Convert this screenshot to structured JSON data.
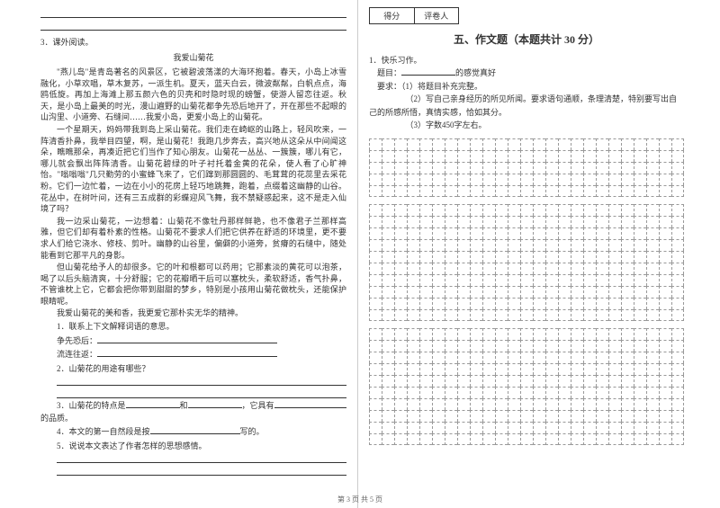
{
  "left": {
    "section_number": "3．课外阅读。",
    "passage_title": "我爱山菊花",
    "paragraphs": [
      "\"燕儿岛\"是青岛著名的风景区，它被碧波荡漾的大海环抱着。春天，小岛上冰雪融化，小草欢唱，草木复苏，一派生机。夏天，蓝天白云，微波粼粼，白帆点点，海鸥低旋。再加上海滩上那五颜六色的贝壳和时隐时现的螃蟹，使游人留恋往返。秋天，是小岛上最美的时光，漫山遍野的山菊花都争先恐后地开了，开在那些不起眼的山沟里、小道旁、石缝间……我爱小岛，更爱小岛上的山菊花。",
      "一个星期天，妈妈带我到岛上采山菊花。我们走在崎岖的山路上，轻风吹来，一阵清香扑鼻，我举目四望，啊，是山菊花！我跑几步奔去，高兴地从这朵从中间闻这朵，瞧瞧那朵，再凑近把它们当作了知心朋友。山菊花一丛丛、一簇簇，哪儿有它，哪儿就会飘出阵阵清香。山菊花碧绿的叶子衬托着金黄的花朵，使人看了心旷神怡。\"嗡嗡嗡\"几只勤劳的小蜜蜂飞来了，它们蹿到那圆圆的、毛茸茸的花蕊里去采花粉。它们一边忙着，一边在小小的花房上轻巧地跳舞，跑着，点缀着这幽静的山谷。花丛中，在树叶间，还有三五成群的彩蝶迎风飞舞，我不禁疑惑起来，这不是走入仙境了吗？",
      "我一边采山菊花，一边想着：山菊花不像牡丹那样鲜艳，也不像君子兰那样高雅，但它们却有着朴素的性格。山菊花不要求人们把它供养在舒适的环境里，更不要求人们给它浇水、修枝、剪叶。幽静的山谷里，偏僻的小道旁，贫瘠的石缝中，随处能看到它那平凡的身影。",
      "但山菊花给予人的却很多。它的叶和根都可以药用；它那素淡的黄花可以泡茶，喝了以后头脑清爽，十分舒服；它的花瓣晒干后可以塞枕头，柔软舒适，香气扑鼻，不管谁枕上它，它都会把你带到甜甜的梦乡，特别是小孩用山菊花做枕头，还能保护眼睛呢。",
      "我爱山菊花的美和香，我更爱它那朴实无华的精神。"
    ],
    "questions": {
      "q1_label": "1．联系上下文解释词语的意思。",
      "q1_word1": "争先恐后：",
      "q1_word2": "流连往返：",
      "q2_label": "2．山菊花的用途有哪些？",
      "q3_label": "3．山菊花的特点是",
      "q3_mid": "和",
      "q3_mid2": "，它具有",
      "q3_end": "的品质。",
      "q4_label": "4．本文的第一自然段是按",
      "q4_end": "写的。",
      "q5_label": "5．说说本文表达了作者怎样的思想感情。"
    }
  },
  "right": {
    "score_label1": "得分",
    "score_label2": "评卷人",
    "section_title": "五、作文题（本题共计 30 分）",
    "prompt_number": "1．快乐习作。",
    "prompt_topic_label": "题目：",
    "prompt_topic_end": "的感觉真好",
    "prompt_req_label": "要求：",
    "prompt_req1": "（1）将题目补充完整。",
    "prompt_req2": "（2）写自己亲身经历的所见所闻。要求语句通顺，条理清楚，特别要写出自己的所感所悟，真情实感，恰如其分。",
    "prompt_req3": "（3）字数450字左右。",
    "grid_cols": 25,
    "grid_sections": [
      5,
      10,
      10
    ]
  },
  "footer": "第 3 页 共 5 页"
}
